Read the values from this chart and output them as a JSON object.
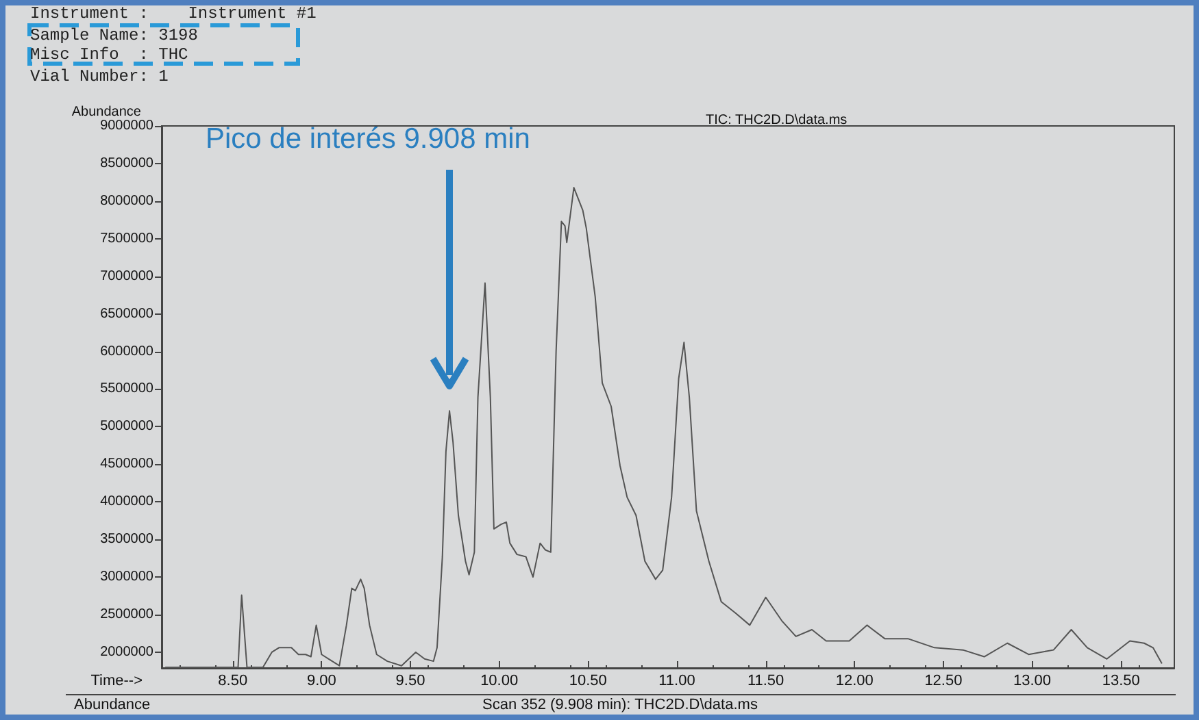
{
  "chart_data": {
    "type": "line",
    "title": "TIC: THC2D.D\\data.ms",
    "xlabel": "Time-->",
    "ylabel": "Abundance",
    "annotations": [
      "Instrument :    Instrument #1",
      "Sample Name: 3198",
      "Misc Info  : THC",
      "Vial Number: 1",
      "Pico de interés 9.908 min",
      "Abundance",
      "Scan 352 (9.908 min): THC2D.D\\data.ms"
    ],
    "x": [
      8.12,
      8.53,
      8.55,
      8.58,
      8.67,
      8.72,
      8.76,
      8.83,
      8.87,
      8.91,
      8.94,
      8.97,
      9.0,
      9.04,
      9.1,
      9.14,
      9.17,
      9.19,
      9.22,
      9.24,
      9.27,
      9.31,
      9.37,
      9.45,
      9.53,
      9.58,
      9.63,
      9.65,
      9.68,
      9.7,
      9.72,
      9.74,
      9.77,
      9.81,
      9.83,
      9.86,
      9.88,
      9.92,
      9.95,
      9.97,
      10.01,
      10.04,
      10.06,
      10.1,
      10.15,
      10.19,
      10.23,
      10.26,
      10.29,
      10.32,
      10.35,
      10.37,
      10.38,
      10.42,
      10.47,
      10.49,
      10.54,
      10.58,
      10.63,
      10.68,
      10.72,
      10.77,
      10.82,
      10.88,
      10.92,
      10.97,
      11.01,
      11.04,
      11.07,
      11.11,
      11.18,
      11.25,
      11.33,
      11.41,
      11.5,
      11.59,
      11.67,
      11.76,
      11.84,
      11.97,
      12.07,
      12.17,
      12.3,
      12.45,
      12.61,
      12.73,
      12.86,
      12.98,
      13.12,
      13.22,
      13.31,
      13.42,
      13.55,
      13.63,
      13.68,
      13.73
    ],
    "series": [
      {
        "color": "#555555",
        "values": [
          1800000,
          1800000,
          2760000,
          1800000,
          1800000,
          2000000,
          2060000,
          2060000,
          1970000,
          1970000,
          1940000,
          2360000,
          1970000,
          1910000,
          1820000,
          2360000,
          2850000,
          2820000,
          2970000,
          2850000,
          2360000,
          1970000,
          1880000,
          1820000,
          2000000,
          1910000,
          1880000,
          2060000,
          3270000,
          4670000,
          5210000,
          4790000,
          3820000,
          3210000,
          3030000,
          3330000,
          5390000,
          6910000,
          5390000,
          3640000,
          3700000,
          3730000,
          3450000,
          3300000,
          3270000,
          3000000,
          3450000,
          3360000,
          3330000,
          6000000,
          7730000,
          7670000,
          7450000,
          8180000,
          7880000,
          7640000,
          6730000,
          5580000,
          5270000,
          4480000,
          4060000,
          3820000,
          3210000,
          2970000,
          3090000,
          4060000,
          5640000,
          6120000,
          5390000,
          3880000,
          3210000,
          2670000,
          2520000,
          2360000,
          2730000,
          2420000,
          2210000,
          2300000,
          2150000,
          2150000,
          2360000,
          2180000,
          2180000,
          2060000,
          2030000,
          1940000,
          2120000,
          1970000,
          2030000,
          2300000,
          2060000,
          1910000,
          2150000,
          2120000,
          2060000,
          1850000
        ]
      }
    ],
    "xlim": [
      8.1,
      13.8
    ],
    "ylim": [
      1790000,
      9000000
    ],
    "xticks": [
      {
        "value": 8.5,
        "label": "8.50"
      },
      {
        "value": 9,
        "label": "9.00"
      },
      {
        "value": 9.5,
        "label": "9.50"
      },
      {
        "value": 10,
        "label": "10.00"
      },
      {
        "value": 10.5,
        "label": "10.50"
      },
      {
        "value": 11,
        "label": "11.00"
      },
      {
        "value": 11.5,
        "label": "11.50"
      },
      {
        "value": 12,
        "label": "12.00"
      },
      {
        "value": 12.5,
        "label": "12.50"
      },
      {
        "value": 13,
        "label": "13.00"
      },
      {
        "value": 13.5,
        "label": "13.50"
      }
    ],
    "yticks": [
      2000000,
      2500000,
      3000000,
      3500000,
      4000000,
      4500000,
      5000000,
      5500000,
      6000000,
      6500000,
      7000000,
      7500000,
      8000000,
      8500000,
      9000000
    ],
    "grid": false,
    "marker": "none",
    "line_style": "solid"
  }
}
